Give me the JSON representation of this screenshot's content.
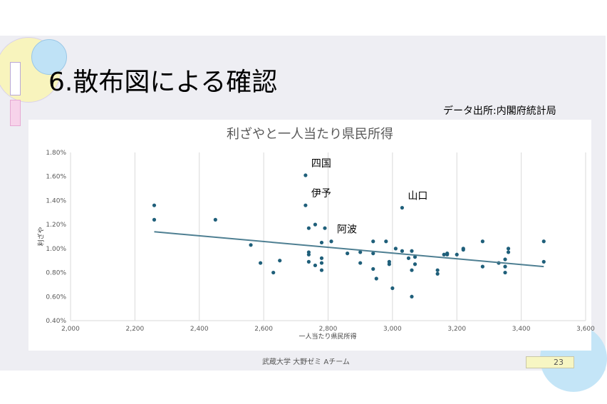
{
  "slide": {
    "title": "6.散布図による確認",
    "source_note": "データ出所:内閣府統計局",
    "footer": "武蔵大学 大野ゼミ Aチーム",
    "page_number": "23"
  },
  "colors": {
    "slide_background": "#eeeef3",
    "chart_background": "#ffffff",
    "point": "#1f5f7a",
    "trendline": "#4e7f92",
    "gridline": "#d9d9d9",
    "axis_text": "#595959",
    "deco_yellow": "#f8f4bd",
    "deco_blue": "#bfe2f6",
    "deco_pink": "#f7d3ea",
    "page_number_box": "#f7f6c3"
  },
  "chart_data": {
    "type": "scatter",
    "title": "利ざやと一人当たり県民所得",
    "xlabel": "一人当たり県民所得",
    "ylabel": "利ざや",
    "xlim": [
      2000,
      3600
    ],
    "ylim": [
      0.4,
      1.8
    ],
    "x_ticks": [
      2000,
      2200,
      2400,
      2600,
      2800,
      3000,
      3200,
      3400,
      3600
    ],
    "x_tick_labels": [
      "2,000",
      "2,200",
      "2,400",
      "2,600",
      "2,800",
      "3,000",
      "3,200",
      "3,400",
      "3,600"
    ],
    "y_ticks": [
      0.4,
      0.6,
      0.8,
      1.0,
      1.2,
      1.4,
      1.6,
      1.8
    ],
    "y_tick_labels": [
      "0.40%",
      "0.60%",
      "0.80%",
      "1.00%",
      "1.20%",
      "1.40%",
      "1.60%",
      "1.80%"
    ],
    "y_unit": "%",
    "grid": "vertical",
    "legend": "none",
    "points": [
      [
        2260,
        1.36
      ],
      [
        2260,
        1.24
      ],
      [
        2450,
        1.24
      ],
      [
        2560,
        1.03
      ],
      [
        2590,
        0.88
      ],
      [
        2630,
        0.8
      ],
      [
        2650,
        0.9
      ],
      [
        2730,
        1.61
      ],
      [
        2730,
        1.36
      ],
      [
        2740,
        1.17
      ],
      [
        2740,
        0.97
      ],
      [
        2740,
        0.95
      ],
      [
        2740,
        0.89
      ],
      [
        2760,
        1.2
      ],
      [
        2760,
        0.86
      ],
      [
        2780,
        0.88
      ],
      [
        2780,
        1.05
      ],
      [
        2780,
        0.82
      ],
      [
        2780,
        0.92
      ],
      [
        2790,
        1.17
      ],
      [
        2810,
        1.06
      ],
      [
        2860,
        0.96
      ],
      [
        2900,
        0.88
      ],
      [
        2900,
        0.97
      ],
      [
        2940,
        1.06
      ],
      [
        2940,
        0.96
      ],
      [
        2940,
        0.83
      ],
      [
        2950,
        0.75
      ],
      [
        2980,
        1.06
      ],
      [
        2990,
        0.89
      ],
      [
        2990,
        0.87
      ],
      [
        3000,
        0.67
      ],
      [
        3010,
        1.0
      ],
      [
        3030,
        1.34
      ],
      [
        3030,
        0.98
      ],
      [
        3050,
        0.92
      ],
      [
        3060,
        0.6
      ],
      [
        3060,
        0.82
      ],
      [
        3060,
        0.98
      ],
      [
        3070,
        0.93
      ],
      [
        3070,
        0.87
      ],
      [
        3140,
        0.82
      ],
      [
        3140,
        0.79
      ],
      [
        3160,
        0.95
      ],
      [
        3170,
        0.96
      ],
      [
        3170,
        0.95
      ],
      [
        3200,
        0.95
      ],
      [
        3220,
        1.0
      ],
      [
        3220,
        0.99
      ],
      [
        3280,
        1.06
      ],
      [
        3280,
        0.85
      ],
      [
        3330,
        0.88
      ],
      [
        3350,
        0.85
      ],
      [
        3350,
        0.8
      ],
      [
        3350,
        0.91
      ],
      [
        3360,
        1.0
      ],
      [
        3360,
        0.97
      ],
      [
        3470,
        1.06
      ],
      [
        3470,
        0.89
      ]
    ],
    "trendline": {
      "type": "linear",
      "x": [
        2260,
        3470
      ],
      "y": [
        1.14,
        0.85
      ]
    },
    "annotations": [
      {
        "text": "四国",
        "x": 2730,
        "y": 1.61
      },
      {
        "text": "伊予",
        "x": 2730,
        "y": 1.36
      },
      {
        "text": "山口",
        "x": 3030,
        "y": 1.34
      },
      {
        "text": "阿波",
        "x": 2810,
        "y": 1.06
      }
    ]
  }
}
